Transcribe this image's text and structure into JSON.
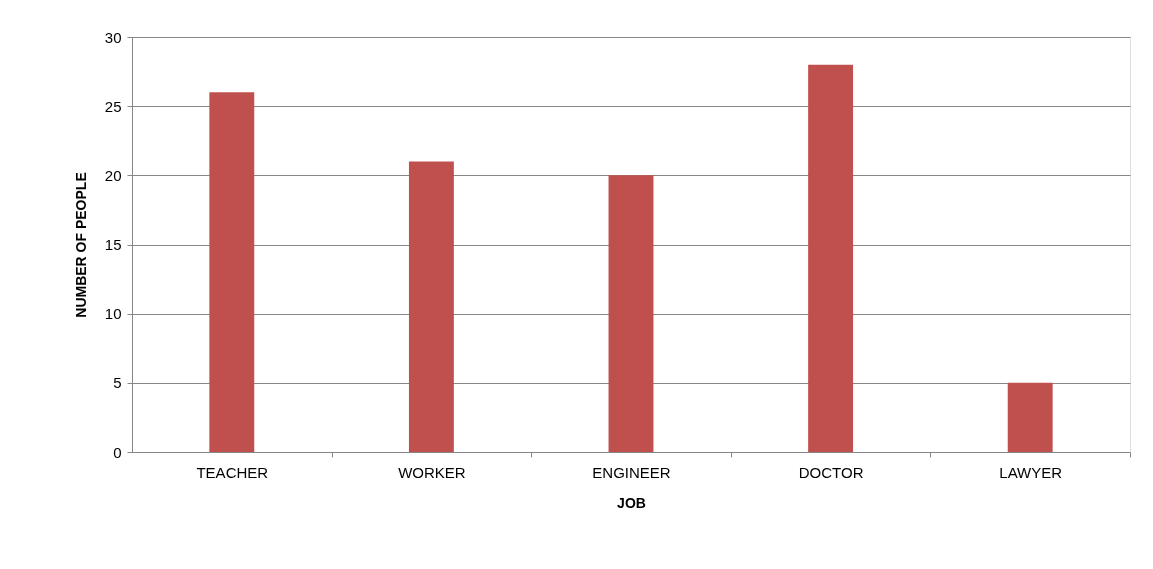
{
  "chart_data": {
    "type": "bar",
    "xlabel": "JOB",
    "ylabel": "NUMBER OF PEOPLE",
    "categories": [
      "TEACHER",
      "WORKER",
      "ENGINEER",
      "DOCTOR",
      "LAWYER"
    ],
    "values": [
      26,
      21,
      20,
      28,
      5
    ],
    "color": "#c0504d",
    "ylim": [
      0,
      30
    ],
    "yticks": [
      0,
      5,
      10,
      15,
      20,
      25,
      30
    ],
    "grid": "y"
  }
}
